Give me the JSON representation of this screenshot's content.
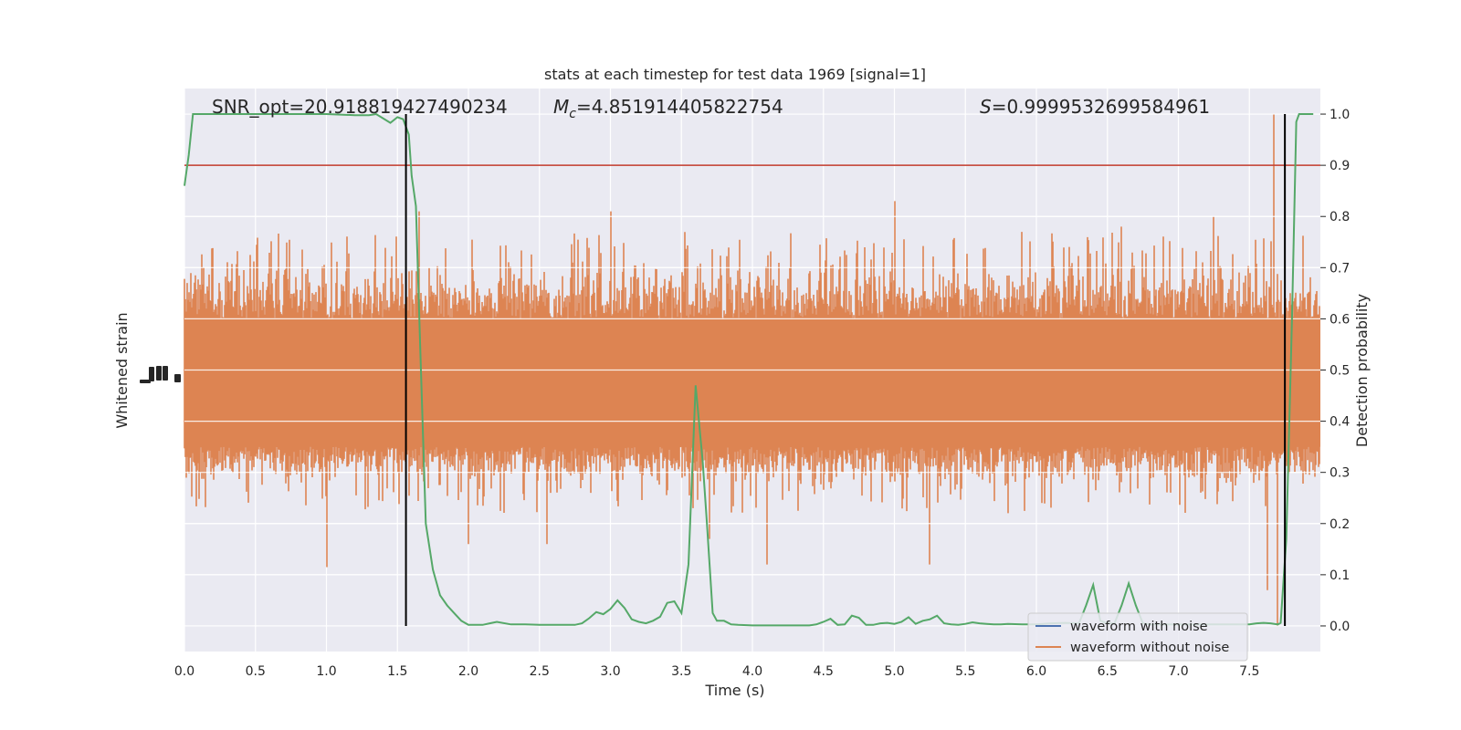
{
  "chart_data": {
    "type": "line",
    "title": "stats at each timestep for test data 1969 [signal=1]",
    "xlabel": "Time (s)",
    "ylabel_left": "Whitened strain",
    "ylabel_right": "Detection probability",
    "xlim": [
      0.0,
      8.0
    ],
    "ylim_right": [
      -0.05,
      1.05
    ],
    "x_ticks": [
      "0.0",
      "0.5",
      "1.0",
      "1.5",
      "2.0",
      "2.5",
      "3.0",
      "3.5",
      "4.0",
      "4.5",
      "5.0",
      "5.5",
      "6.0",
      "6.5",
      "7.0",
      "7.5"
    ],
    "y_right_ticks": [
      "0.0",
      "0.1",
      "0.2",
      "0.3",
      "0.4",
      "0.5",
      "0.6",
      "0.7",
      "0.8",
      "0.9",
      "1.0"
    ],
    "grid": true,
    "background": "#eaeaf2",
    "annotations": [
      {
        "text": "SNR_opt=20.918819427490234"
      },
      {
        "text_before": "M",
        "subscript": "c",
        "text_after": "=4.851914405822754"
      },
      {
        "text_italic": "S",
        "text_after": "=0.9999532699584961"
      }
    ],
    "threshold": {
      "value": 0.9,
      "color": "#c0392b"
    },
    "vlines": [
      {
        "x": 1.56,
        "color": "#000000"
      },
      {
        "x": 7.75,
        "color": "#000000"
      }
    ],
    "series": [
      {
        "name": "waveform with noise",
        "color": "#4c72b0",
        "kind": "strain",
        "shown": false
      },
      {
        "name": "waveform without noise",
        "color": "#dd8452",
        "kind": "strain",
        "band_core": [
          0.35,
          0.6
        ],
        "band_typical": [
          0.27,
          0.72
        ],
        "band_extreme": [
          0.0,
          1.0
        ],
        "peaks": [
          [
            1.0,
            0.115
          ],
          [
            1.65,
            0.81
          ],
          [
            2.0,
            0.16
          ],
          [
            2.55,
            0.16
          ],
          [
            3.0,
            0.81
          ],
          [
            3.7,
            0.17
          ],
          [
            4.1,
            0.12
          ],
          [
            5.0,
            0.83
          ],
          [
            5.25,
            0.12
          ],
          [
            5.9,
            0.77
          ],
          [
            6.6,
            0.78
          ],
          [
            7.25,
            0.8
          ],
          [
            7.63,
            0.07
          ],
          [
            7.67,
            1.0
          ],
          [
            7.7,
            0.0
          ]
        ]
      },
      {
        "name": "detection probability",
        "color": "#55a868",
        "kind": "probability",
        "x": [
          0.0,
          0.03,
          0.06,
          0.1,
          0.2,
          0.4,
          0.6,
          0.8,
          1.0,
          1.2,
          1.3,
          1.35,
          1.45,
          1.5,
          1.54,
          1.58,
          1.6,
          1.63,
          1.66,
          1.7,
          1.75,
          1.8,
          1.85,
          1.9,
          1.95,
          2.0,
          2.05,
          2.1,
          2.15,
          2.2,
          2.3,
          2.4,
          2.5,
          2.6,
          2.7,
          2.75,
          2.8,
          2.85,
          2.9,
          2.95,
          3.0,
          3.05,
          3.1,
          3.15,
          3.2,
          3.25,
          3.3,
          3.35,
          3.4,
          3.45,
          3.5,
          3.55,
          3.6,
          3.65,
          3.68,
          3.72,
          3.75,
          3.8,
          3.85,
          3.9,
          4.0,
          4.1,
          4.2,
          4.3,
          4.4,
          4.45,
          4.5,
          4.55,
          4.6,
          4.65,
          4.7,
          4.75,
          4.8,
          4.85,
          4.9,
          4.95,
          5.0,
          5.05,
          5.1,
          5.15,
          5.2,
          5.25,
          5.3,
          5.35,
          5.4,
          5.45,
          5.5,
          5.55,
          5.6,
          5.65,
          5.7,
          5.75,
          5.8,
          5.9,
          6.0,
          6.1,
          6.2,
          6.3,
          6.35,
          6.4,
          6.45,
          6.5,
          6.55,
          6.6,
          6.65,
          6.7,
          6.75,
          6.8,
          6.9,
          7.0,
          7.1,
          7.2,
          7.3,
          7.4,
          7.5,
          7.55,
          7.6,
          7.65,
          7.7,
          7.72,
          7.76,
          7.8,
          7.83,
          7.85,
          7.9,
          7.95
        ],
        "y": [
          0.86,
          0.92,
          1.0,
          1.0,
          1.0,
          1.0,
          1.0,
          1.0,
          1.0,
          0.998,
          0.998,
          1.0,
          0.983,
          0.994,
          0.99,
          0.96,
          0.88,
          0.82,
          0.55,
          0.2,
          0.11,
          0.06,
          0.04,
          0.025,
          0.01,
          0.002,
          0.002,
          0.002,
          0.005,
          0.008,
          0.003,
          0.003,
          0.002,
          0.002,
          0.002,
          0.002,
          0.005,
          0.015,
          0.027,
          0.023,
          0.033,
          0.05,
          0.035,
          0.013,
          0.008,
          0.005,
          0.01,
          0.018,
          0.045,
          0.048,
          0.025,
          0.12,
          0.47,
          0.32,
          0.2,
          0.025,
          0.01,
          0.01,
          0.003,
          0.002,
          0.001,
          0.001,
          0.001,
          0.001,
          0.001,
          0.003,
          0.008,
          0.014,
          0.002,
          0.003,
          0.02,
          0.016,
          0.002,
          0.002,
          0.005,
          0.006,
          0.004,
          0.008,
          0.017,
          0.004,
          0.01,
          0.013,
          0.02,
          0.005,
          0.003,
          0.002,
          0.004,
          0.007,
          0.005,
          0.004,
          0.003,
          0.003,
          0.004,
          0.003,
          0.003,
          0.005,
          0.006,
          0.005,
          0.04,
          0.08,
          0.01,
          0.005,
          0.005,
          0.04,
          0.083,
          0.04,
          0.005,
          0.003,
          0.003,
          0.003,
          0.003,
          0.003,
          0.003,
          0.003,
          0.003,
          0.005,
          0.006,
          0.005,
          0.003,
          0.006,
          0.17,
          0.6,
          0.985,
          1.0,
          1.0,
          1.0
        ]
      }
    ],
    "legend": {
      "placement": "lower-right",
      "entries": [
        "waveform with noise",
        "waveform without noise"
      ]
    }
  }
}
